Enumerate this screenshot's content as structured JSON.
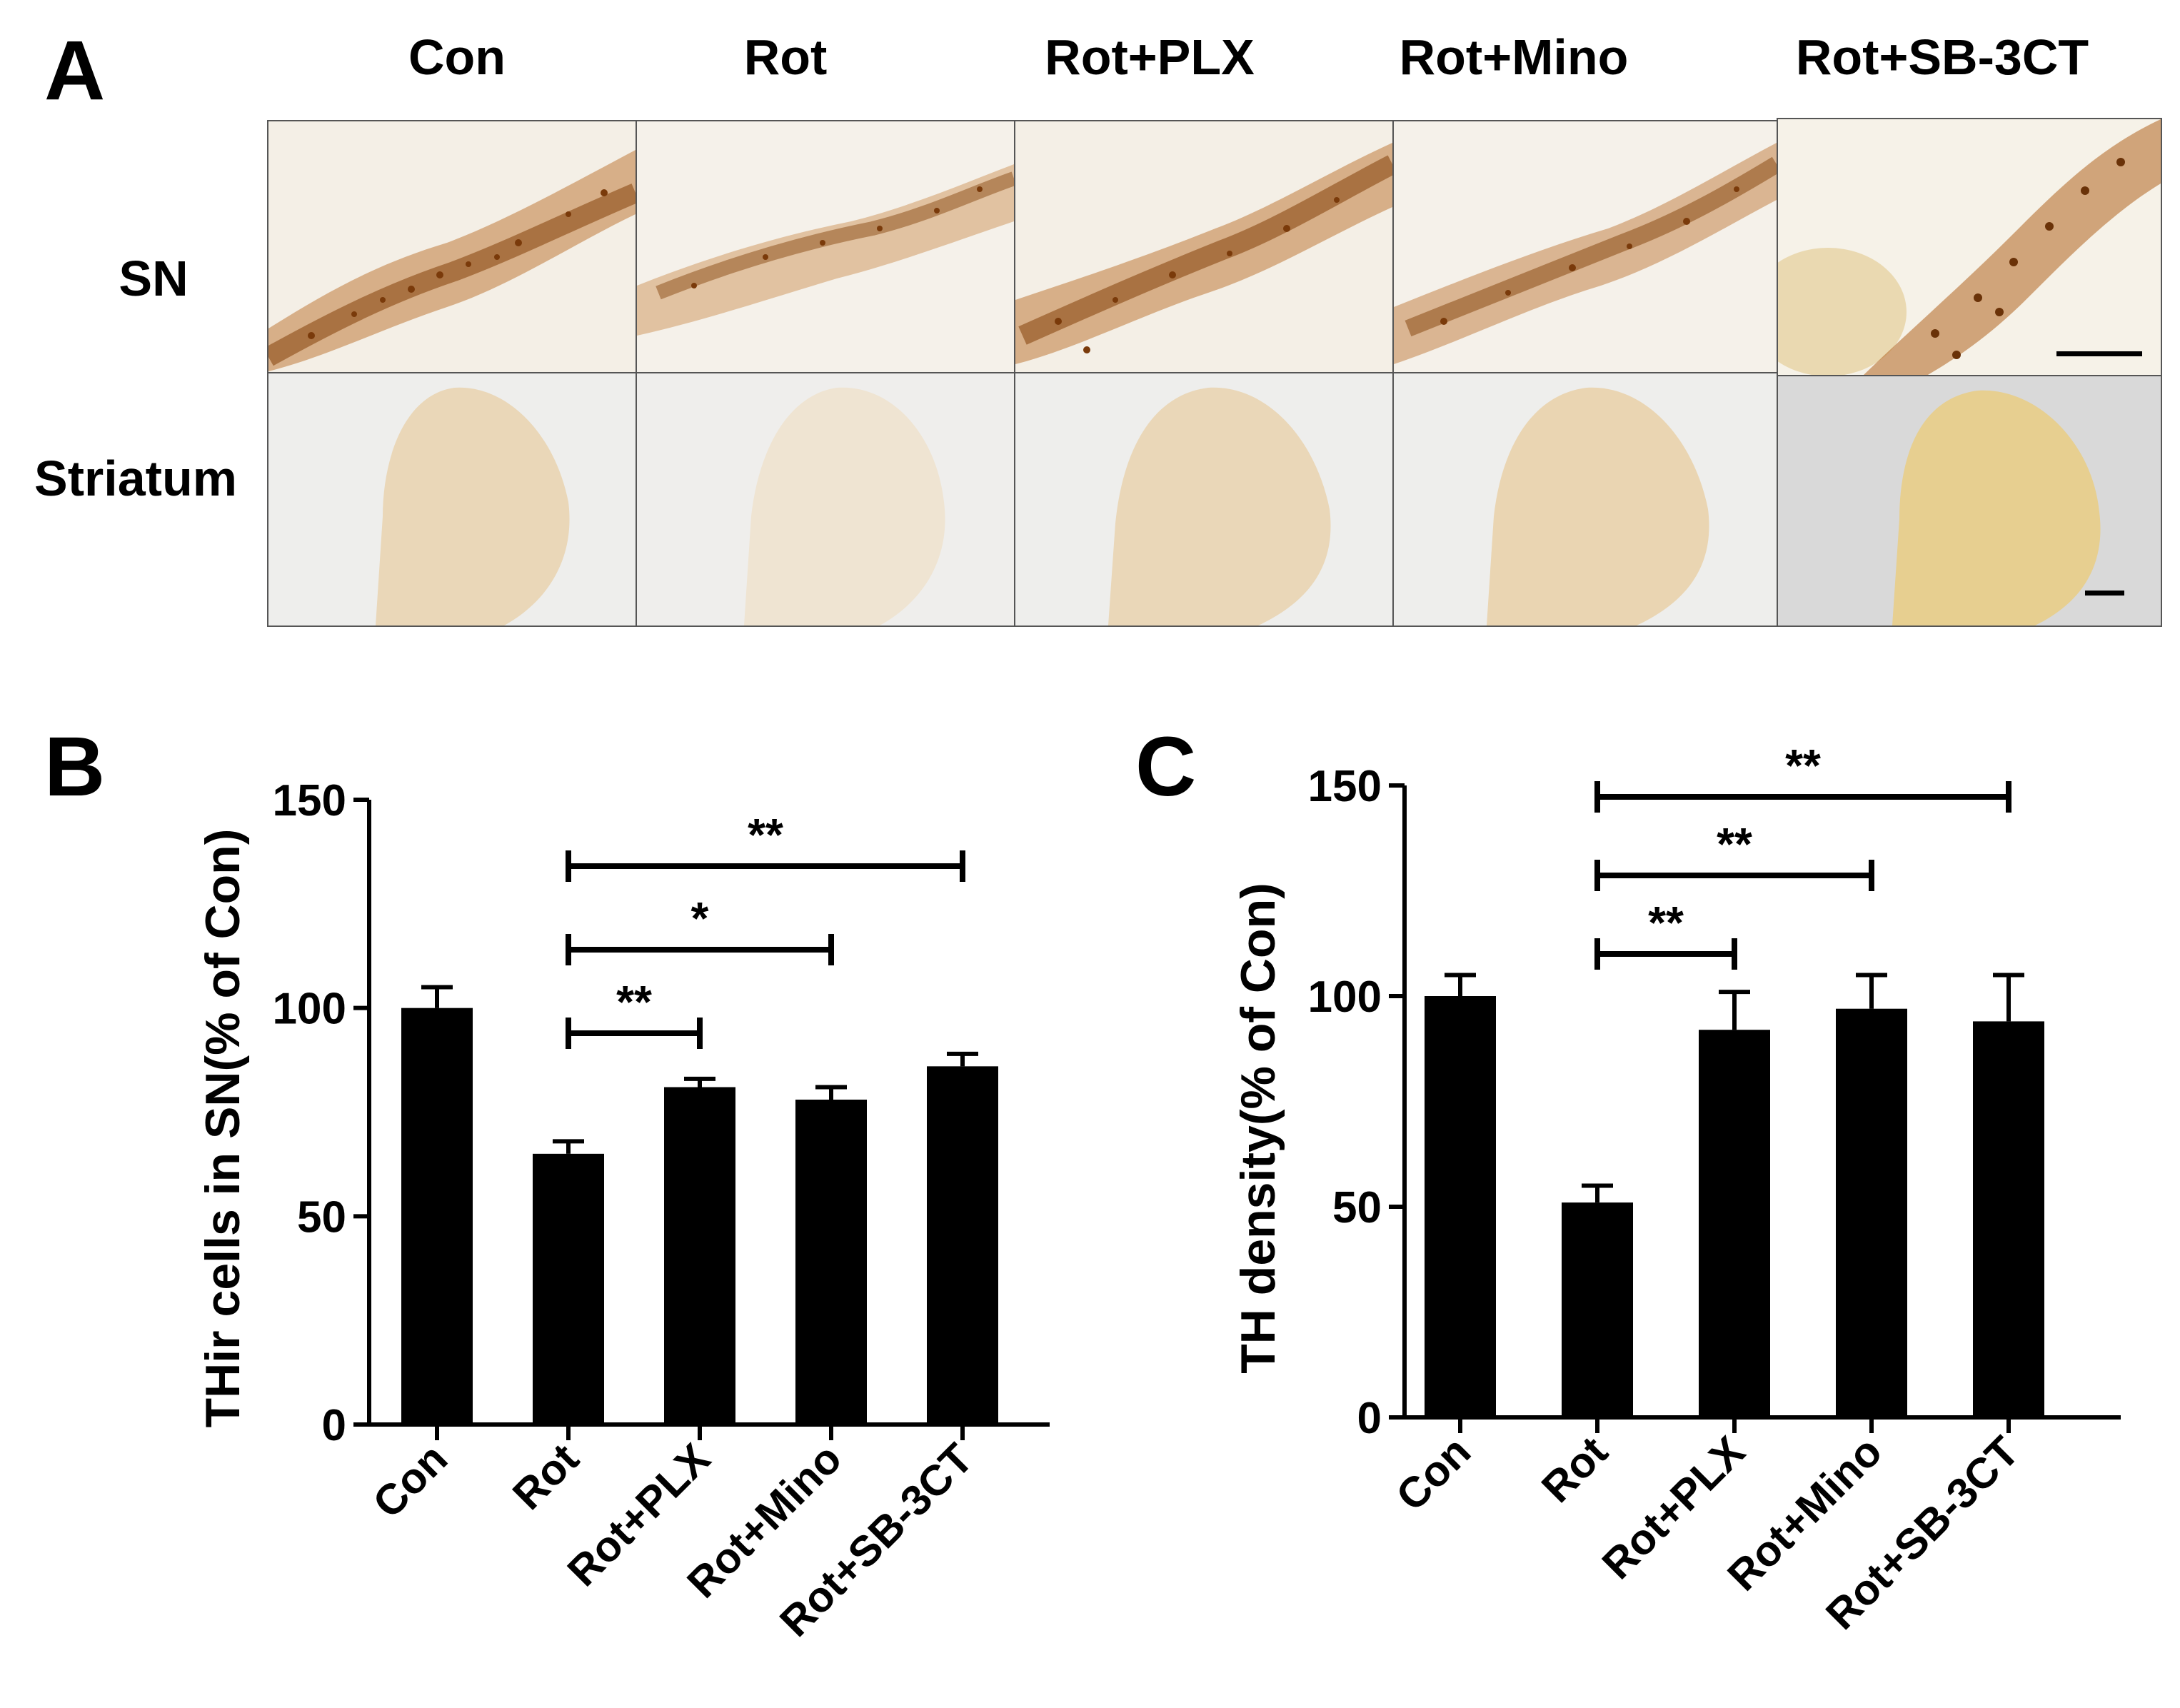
{
  "panel_a": {
    "letter": "A",
    "columns": [
      "Con",
      "Rot",
      "Rot+PLX",
      "Rot+Mino",
      "Rot+SB-3CT"
    ],
    "rows": [
      "SN",
      "Striatum"
    ],
    "stain_color": "#b5651d",
    "bg_color": "#f3efe8"
  },
  "chart_data": [
    {
      "panel": "B",
      "type": "bar",
      "categories": [
        "Con",
        "Rot",
        "Rot+PLX",
        "Rot+Mino",
        "Rot+SB-3CT"
      ],
      "values": [
        100,
        65,
        81,
        78,
        86
      ],
      "errors": [
        5,
        3,
        2,
        3,
        3
      ],
      "ylabel": "THir cells in SN(% of Con)",
      "xlabel": "",
      "ylim": [
        0,
        150
      ],
      "yticks": [
        0,
        50,
        100,
        150
      ],
      "bar_color": "#000000",
      "significance": [
        {
          "from": 1,
          "to": 2,
          "label": "**",
          "level": 0
        },
        {
          "from": 1,
          "to": 3,
          "label": "*",
          "level": 1
        },
        {
          "from": 1,
          "to": 4,
          "label": "**",
          "level": 2
        }
      ]
    },
    {
      "panel": "C",
      "type": "bar",
      "categories": [
        "Con",
        "Rot",
        "Rot+PLX",
        "Rot+Mino",
        "Rot+SB-3CT"
      ],
      "values": [
        100,
        51,
        92,
        97,
        94
      ],
      "errors": [
        5,
        4,
        9,
        8,
        11
      ],
      "ylabel": "TH density(% of Con)",
      "xlabel": "",
      "ylim": [
        0,
        150
      ],
      "yticks": [
        0,
        50,
        100,
        150
      ],
      "bar_color": "#000000",
      "significance": [
        {
          "from": 1,
          "to": 2,
          "label": "**",
          "level": 0
        },
        {
          "from": 1,
          "to": 3,
          "label": "**",
          "level": 1
        },
        {
          "from": 1,
          "to": 4,
          "label": "**",
          "level": 2
        }
      ]
    }
  ]
}
